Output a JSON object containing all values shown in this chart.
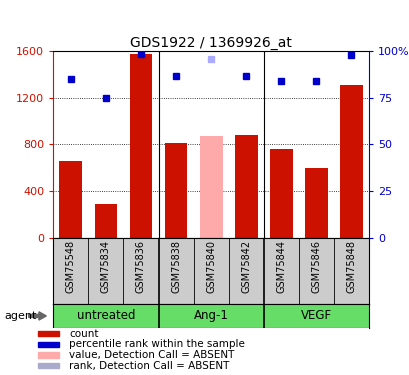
{
  "title": "GDS1922 / 1369926_at",
  "samples": [
    "GSM75548",
    "GSM75834",
    "GSM75836",
    "GSM75838",
    "GSM75840",
    "GSM75842",
    "GSM75844",
    "GSM75846",
    "GSM75848"
  ],
  "bar_values": [
    660,
    290,
    1570,
    810,
    870,
    880,
    760,
    600,
    1310
  ],
  "bar_colors": [
    "#cc1100",
    "#cc1100",
    "#cc1100",
    "#cc1100",
    "#ffaaaa",
    "#cc1100",
    "#cc1100",
    "#cc1100",
    "#cc1100"
  ],
  "rank_values": [
    1360,
    1200,
    1570,
    1380,
    1530,
    1380,
    1340,
    1340,
    1560
  ],
  "rank_colors": [
    "#0000cc",
    "#0000cc",
    "#0000cc",
    "#0000cc",
    "#aaaaff",
    "#0000cc",
    "#0000cc",
    "#0000cc",
    "#0000cc"
  ],
  "ylim_left": [
    0,
    1600
  ],
  "ylim_right": [
    0,
    100
  ],
  "yticks_left": [
    0,
    400,
    800,
    1200,
    1600
  ],
  "yticks_right": [
    0,
    25,
    50,
    75,
    100
  ],
  "ytick_labels_right": [
    "0",
    "25",
    "50",
    "75",
    "100%"
  ],
  "group_labels": [
    "untreated",
    "Ang-1",
    "VEGF"
  ],
  "group_color": "#66dd66",
  "sample_bg_color": "#cccccc",
  "agent_label": "agent",
  "left_axis_color": "#cc1100",
  "right_axis_color": "#0000cc",
  "plot_bg_color": "#ffffff",
  "bar_width": 0.65,
  "legend_items": [
    {
      "color": "#cc1100",
      "label": "count"
    },
    {
      "color": "#0000cc",
      "label": "percentile rank within the sample"
    },
    {
      "color": "#ffaaaa",
      "label": "value, Detection Call = ABSENT"
    },
    {
      "color": "#aaaacc",
      "label": "rank, Detection Call = ABSENT"
    }
  ]
}
